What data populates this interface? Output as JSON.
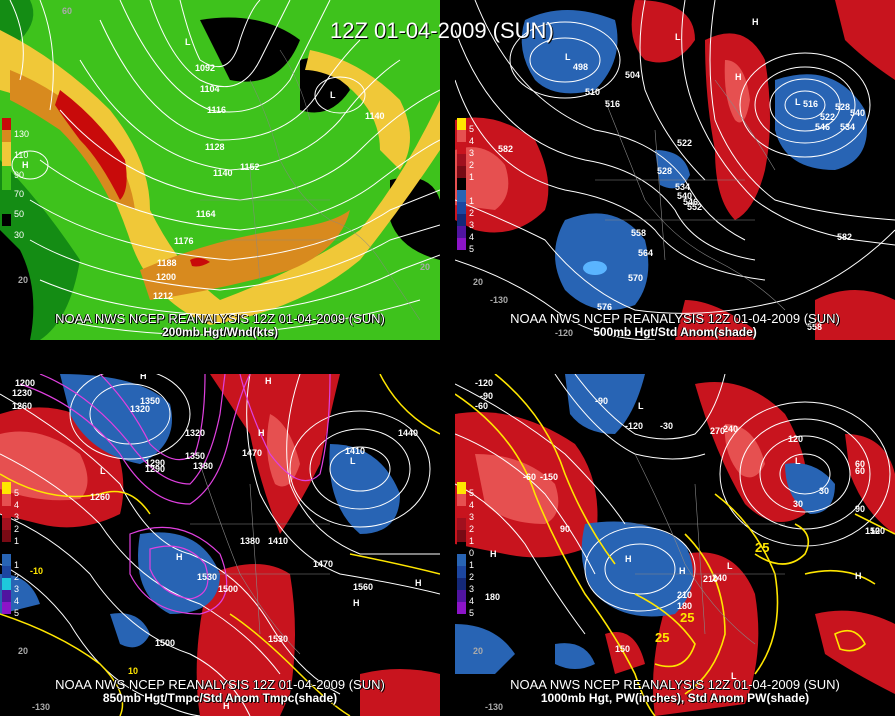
{
  "title": "12Z 01-04-2009 (SUN)",
  "panels": {
    "p200": {
      "caption1": "NOAA NWS NCEP REANALYSIS 12Z 01-04-2009 (SUN)",
      "caption2": "200mb Hgt/Wnd(kts)",
      "legend": [
        "130",
        "110",
        "90",
        "70",
        "50",
        "30"
      ],
      "contours": [
        "1092",
        "1104",
        "1116",
        "1128",
        "1140",
        "1152",
        "1164",
        "1176",
        "1188",
        "1200",
        "1212",
        "1140"
      ],
      "lat_lon": [
        "60",
        "20",
        "20"
      ]
    },
    "p500": {
      "caption1": "NOAA NWS NCEP REANALYSIS 12Z 01-04-2009 (SUN)",
      "caption2": "500mb Hgt/Std Anom(shade)",
      "legend": [
        "5",
        "4",
        "3",
        "2",
        "1",
        "1",
        "2",
        "3",
        "4",
        "5"
      ],
      "contours": [
        "498",
        "504",
        "510",
        "516",
        "522",
        "528",
        "534",
        "540",
        "546",
        "552",
        "558",
        "564",
        "570",
        "576",
        "582",
        "582",
        "516",
        "522",
        "528",
        "534",
        "540",
        "546",
        "558"
      ],
      "lat_lon": [
        "20",
        "-130",
        "-120"
      ]
    },
    "p850": {
      "caption1": "NOAA NWS NCEP REANALYSIS 12Z 01-04-2009 (SUN)",
      "caption2": "850mb Hgt/Tmpc/Std Anom Tmpc(shade)",
      "legend": [
        "5",
        "4",
        "3",
        "2",
        "1",
        "1",
        "2",
        "3",
        "4",
        "5"
      ],
      "contours": [
        "1200",
        "1230",
        "1260",
        "1290",
        "1320",
        "1350",
        "1380",
        "1410",
        "1440",
        "1470",
        "1500",
        "1530",
        "1560",
        "1260",
        "1290",
        "1320",
        "1350",
        "1380",
        "1410",
        "1470",
        "1500",
        "1530"
      ],
      "temps": [
        "-10",
        "10"
      ],
      "lat_lon": [
        "20",
        "-130"
      ]
    },
    "p1000": {
      "caption1": "NOAA NWS NCEP REANALYSIS 12Z 01-04-2009 (SUN)",
      "caption2": "1000mb Hgt, PW(inches), Std Anom PW(shade)",
      "legend": [
        "5",
        "4",
        "3",
        "2",
        "1",
        "0",
        "1",
        "2",
        "3",
        "4",
        "5"
      ],
      "contours": [
        "-120",
        "-90",
        "-60",
        "-30",
        "30",
        "60",
        "90",
        "120",
        "150",
        "180",
        "210",
        "240",
        "270",
        "-150",
        "-120",
        "-90",
        "-60",
        "30",
        "60",
        "90",
        "120",
        "150",
        "180",
        "210",
        "240"
      ],
      "pw": [
        "25",
        "25",
        "25"
      ],
      "lat_lon": [
        "20",
        "-130"
      ]
    }
  },
  "colors": {
    "wind_green": "#3ec21c",
    "wind_dark_green": "#148c14",
    "wind_yellow": "#f0c838",
    "wind_orange": "#d88a1e",
    "wind_red": "#c80a0a",
    "anom_red": "#c8141e",
    "anom_pink": "#e65050",
    "anom_blue": "#2864b4",
    "anom_light_blue": "#5ab4ff",
    "pw_yellow": "#ffe600",
    "temp_magenta": "#e040e0"
  }
}
